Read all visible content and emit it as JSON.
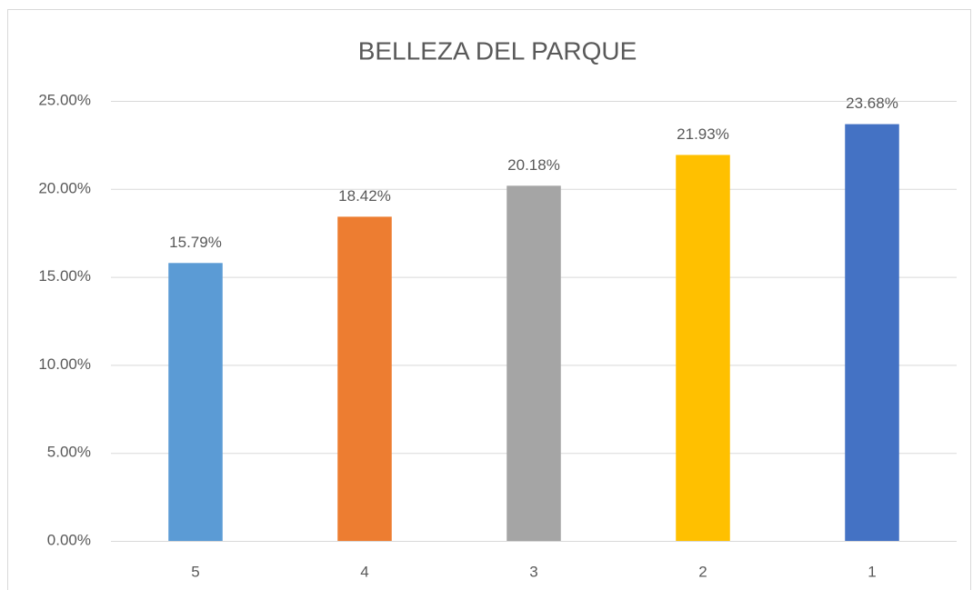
{
  "chart_data": {
    "type": "bar",
    "title": "BELLEZA DEL PARQUE",
    "categories": [
      "5",
      "4",
      "3",
      "2",
      "1"
    ],
    "values": [
      15.79,
      18.42,
      20.18,
      21.93,
      23.68
    ],
    "value_labels": [
      "15.79%",
      "18.42%",
      "20.18%",
      "21.93%",
      "23.68%"
    ],
    "colors": [
      "#5b9bd5",
      "#ed7d31",
      "#a5a5a5",
      "#ffc000",
      "#4472c4"
    ],
    "ylim": [
      0,
      25
    ],
    "yticks": [
      {
        "value": 0,
        "label": "0.00%"
      },
      {
        "value": 5,
        "label": "5.00%"
      },
      {
        "value": 10,
        "label": "10.00%"
      },
      {
        "value": 15,
        "label": "15.00%"
      },
      {
        "value": 20,
        "label": "20.00%"
      },
      {
        "value": 25,
        "label": "25.00%"
      }
    ],
    "grid": true
  }
}
